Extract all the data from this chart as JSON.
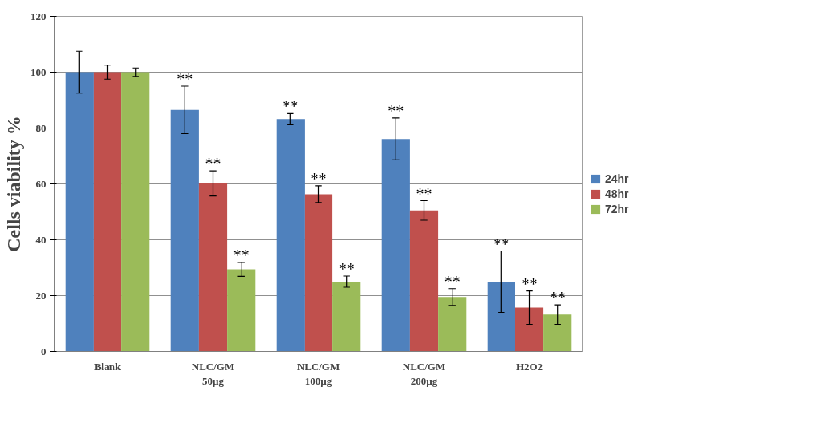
{
  "chart_data": {
    "type": "bar",
    "ylabel": "Cells viability %",
    "categories": [
      "Blank",
      "NLC/GM\n50µg",
      "NLC/GM\n100µg",
      "NLC/GM\n200µg",
      "H2O2"
    ],
    "series": [
      {
        "name": "24hr",
        "color": "#4f81bd",
        "values": [
          100,
          86.5,
          83.2,
          76.1,
          25
        ],
        "errors": [
          7.5,
          8.5,
          2,
          7.5,
          11
        ],
        "value_labels": [
          null,
          "**",
          "**",
          "**",
          "**"
        ]
      },
      {
        "name": "48hr",
        "color": "#c0504d",
        "values": [
          100,
          60.2,
          56.3,
          50.5,
          15.7
        ],
        "errors": [
          2.5,
          4.5,
          3,
          3.5,
          6
        ],
        "value_labels": [
          null,
          "**",
          "**",
          "**",
          "**"
        ]
      },
      {
        "name": "72hr",
        "color": "#9bbb59",
        "values": [
          100,
          29.4,
          25,
          19.5,
          13.2
        ],
        "errors": [
          1.5,
          2.5,
          2,
          3,
          3.5
        ],
        "value_labels": [
          null,
          "**",
          "**",
          "**",
          "**"
        ]
      }
    ],
    "ylim": [
      0,
      120
    ],
    "yticks": [
      0,
      20,
      40,
      60,
      80,
      100,
      120
    ],
    "grid": "y",
    "legend": "right"
  }
}
